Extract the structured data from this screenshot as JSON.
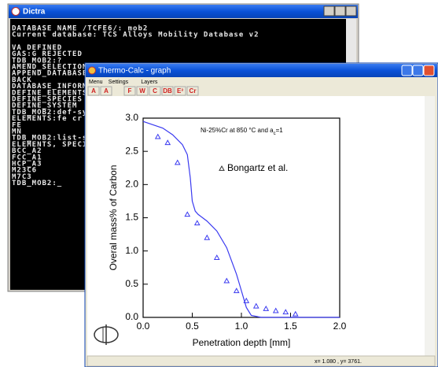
{
  "dictra_window": {
    "title": "Dictra",
    "lines": [
      "DATABASE NAME /TCFE6/: mob2",
      "Current database: TCS Alloys Mobility Database v2",
      "VA  DEFINED",
      "GAS:G  REJECTED",
      "TDB_MOB2:?",
      "AMEND_SELECTION",
      "APPEND_DATABASE",
      "BACK",
      "DATABASE_INFORMA",
      "DEFINE_ELEMENTS",
      "DEFINE_SPECIES",
      "DEFINE_SYSTEM",
      "TDB_MOB2:def-sys",
      "ELEMENTS:fe cr c",
      "FE",
      "MN",
      "TDB_MOB2:list-sys",
      "ELEMENTS, SPECIES",
      "BCC_A2",
      "FCC_A1",
      "HCP_A3",
      "M23C6",
      "M7C3",
      "TDB_MOB2:_"
    ]
  },
  "graph_window": {
    "title": "Thermo-Calc - graph",
    "menu": [
      "Menu",
      "Settings",
      "Layers"
    ],
    "toolbar": [
      "A",
      "A",
      "F",
      "W",
      "C",
      "DB",
      "E³",
      "Cr"
    ],
    "status": "x= 1.080 , y= 3761."
  },
  "chart_data": {
    "type": "line",
    "annotation": "Ni-25%Cr at 850 °C and a",
    "annotation_subscript": "c",
    "annotation_suffix": "=1",
    "x_label": "Penetration depth  [mm]",
    "y_label": "Overal mass% of Carbon",
    "xlim": [
      0,
      2
    ],
    "ylim": [
      0,
      3
    ],
    "xticks": [
      {
        "value": 0,
        "label": "0.0"
      },
      0.5,
      {
        "value": 1,
        "label": "1.0"
      },
      1.5,
      {
        "value": 2,
        "label": "2.0"
      }
    ],
    "yticks": [
      {
        "value": 0,
        "label": "0.0"
      },
      0.5,
      {
        "value": 1,
        "label": "1.0"
      },
      1.5,
      {
        "value": 2,
        "label": "2.0"
      },
      2.5,
      {
        "value": 3,
        "label": "3.0"
      }
    ],
    "series": [
      {
        "type": "line",
        "color": "#3a3af0",
        "x": [
          0,
          0.1,
          0.2,
          0.3,
          0.4,
          0.45,
          0.48,
          0.5,
          0.53,
          0.56,
          0.65,
          0.75,
          0.85,
          0.95,
          1.0,
          1.05,
          1.1,
          1.2,
          2.0
        ],
        "values": [
          2.95,
          2.9,
          2.85,
          2.75,
          2.6,
          2.45,
          2.1,
          1.75,
          1.6,
          1.55,
          1.45,
          1.3,
          1.05,
          0.65,
          0.4,
          0.15,
          0.03,
          0,
          0
        ]
      },
      {
        "type": "scatter",
        "name": "Bongartz et al.",
        "color": "#3a3af0",
        "marker": "triangle",
        "x": [
          0.15,
          0.25,
          0.35,
          0.45,
          0.55,
          0.65,
          0.75,
          0.85,
          0.95,
          1.05,
          1.15,
          1.25,
          1.35,
          1.45,
          1.55
        ],
        "values": [
          2.72,
          2.63,
          2.33,
          1.55,
          1.42,
          1.2,
          0.9,
          0.55,
          0.4,
          0.25,
          0.17,
          0.13,
          0.1,
          0.08,
          0.05
        ]
      }
    ]
  }
}
